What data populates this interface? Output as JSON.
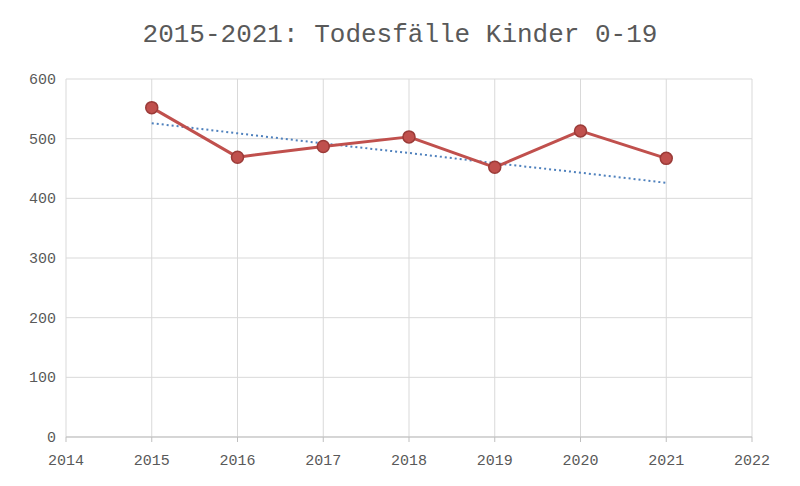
{
  "chart_data": {
    "type": "line",
    "title": "2015-2021: Todesfälle Kinder 0-19",
    "x": [
      2015,
      2016,
      2017,
      2018,
      2019,
      2020,
      2021
    ],
    "series": [
      {
        "color": "#c0504d",
        "marker": "circle",
        "line_style": "solid",
        "values": [
          552,
          469,
          487,
          503,
          452,
          513,
          467
        ]
      },
      {
        "color": "#4f81bd",
        "marker": "none",
        "line_style": "dotted",
        "values": [
          526,
          509,
          492,
          476,
          459,
          443,
          426
        ]
      }
    ],
    "xlim": [
      2014,
      2022
    ],
    "xticks": [
      2014,
      2015,
      2016,
      2017,
      2018,
      2019,
      2020,
      2021,
      2022
    ],
    "ylim": [
      0,
      600
    ],
    "yticks": [
      0,
      100,
      200,
      300,
      400,
      500,
      600
    ],
    "grid": true
  }
}
